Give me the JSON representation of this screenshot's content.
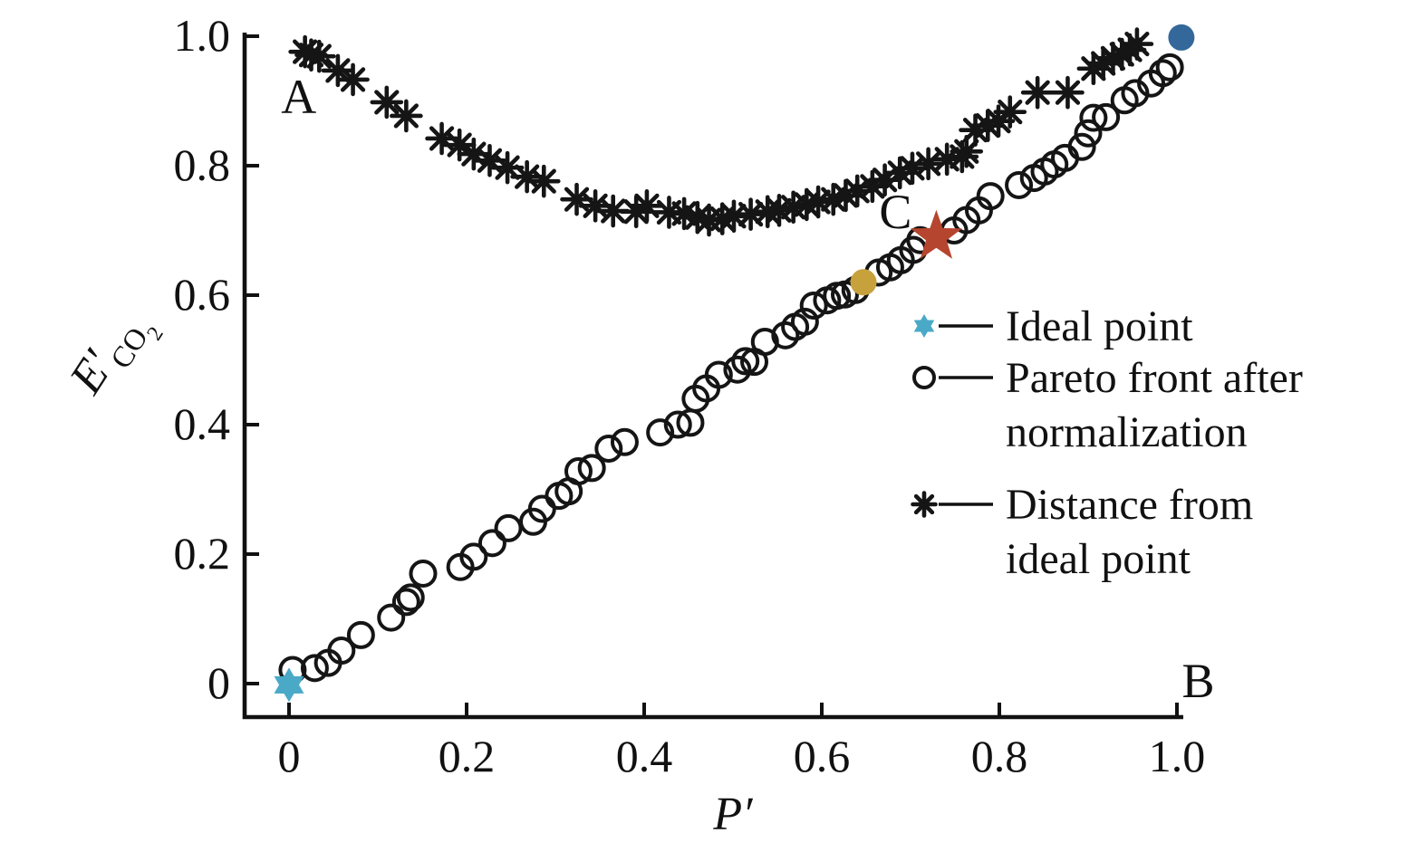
{
  "figure": {
    "background": "#ffffff",
    "axis_color": "#111111",
    "text_color": "#111111"
  },
  "chart_data": {
    "type": "scatter",
    "title": "",
    "xlabel": "P′",
    "ylabel": {
      "base": "E′",
      "sub": "CO",
      "subsub": "2"
    },
    "xlim": [
      0,
      1.0
    ],
    "ylim": [
      0,
      1.0
    ],
    "grid": false,
    "xticks": {
      "values": [
        0,
        0.2,
        0.4,
        0.6,
        0.8,
        1.0
      ],
      "labels": [
        "0",
        "0.2",
        "0.4",
        "0.6",
        "0.8",
        "1.0"
      ]
    },
    "yticks": {
      "values": [
        0,
        0.2,
        0.4,
        0.6,
        0.8,
        1.0
      ],
      "labels": [
        "0",
        "0.2",
        "0.4",
        "0.6",
        "0.8",
        "1.0"
      ]
    },
    "annotations": [
      {
        "text": "A",
        "x": 0.011,
        "y": 0.906
      },
      {
        "text": "B",
        "x": 1.024,
        "y": 0.004
      },
      {
        "text": "C",
        "x": 0.683,
        "y": 0.729
      }
    ],
    "legend": {
      "position": "right-middle",
      "entries": [
        {
          "marker": "star6",
          "color": "#4aa9c7",
          "lines": [
            "Ideal point"
          ]
        },
        {
          "marker": "open-circle",
          "color": "#151515",
          "lines": [
            "Pareto front after",
            "normalization"
          ]
        },
        {
          "marker": "asterisk8",
          "color": "#151515",
          "lines": [
            "Distance from",
            "ideal point"
          ]
        }
      ]
    },
    "series": [
      {
        "name": "Distance from ideal point",
        "marker": "asterisk8",
        "color": "#151515",
        "in_legend": true,
        "points": [
          [
            0.018,
            0.976
          ],
          [
            0.025,
            0.971
          ],
          [
            0.034,
            0.969
          ],
          [
            0.055,
            0.947
          ],
          [
            0.072,
            0.933
          ],
          [
            0.11,
            0.898
          ],
          [
            0.132,
            0.877
          ],
          [
            0.172,
            0.842
          ],
          [
            0.192,
            0.832
          ],
          [
            0.208,
            0.818
          ],
          [
            0.226,
            0.808
          ],
          [
            0.246,
            0.797
          ],
          [
            0.268,
            0.783
          ],
          [
            0.287,
            0.776
          ],
          [
            0.324,
            0.748
          ],
          [
            0.345,
            0.738
          ],
          [
            0.365,
            0.73
          ],
          [
            0.391,
            0.729
          ],
          [
            0.403,
            0.738
          ],
          [
            0.428,
            0.728
          ],
          [
            0.445,
            0.726
          ],
          [
            0.46,
            0.72
          ],
          [
            0.473,
            0.716
          ],
          [
            0.488,
            0.718
          ],
          [
            0.501,
            0.722
          ],
          [
            0.52,
            0.725
          ],
          [
            0.539,
            0.729
          ],
          [
            0.552,
            0.731
          ],
          [
            0.568,
            0.736
          ],
          [
            0.583,
            0.74
          ],
          [
            0.596,
            0.744
          ],
          [
            0.613,
            0.748
          ],
          [
            0.627,
            0.754
          ],
          [
            0.64,
            0.761
          ],
          [
            0.657,
            0.768
          ],
          [
            0.671,
            0.778
          ],
          [
            0.688,
            0.789
          ],
          [
            0.702,
            0.796
          ],
          [
            0.72,
            0.803
          ],
          [
            0.741,
            0.81
          ],
          [
            0.758,
            0.814
          ],
          [
            0.763,
            0.822
          ],
          [
            0.773,
            0.855
          ],
          [
            0.787,
            0.862
          ],
          [
            0.799,
            0.869
          ],
          [
            0.812,
            0.883
          ],
          [
            0.843,
            0.913
          ],
          [
            0.877,
            0.913
          ],
          [
            0.906,
            0.95
          ],
          [
            0.917,
            0.958
          ],
          [
            0.928,
            0.966
          ],
          [
            0.938,
            0.972
          ],
          [
            0.947,
            0.979
          ],
          [
            0.955,
            0.988
          ]
        ]
      },
      {
        "name": "Pareto front after normalization",
        "marker": "open-circle",
        "color": "#151515",
        "in_legend": true,
        "points": [
          [
            0.004,
            0.021
          ],
          [
            0.029,
            0.024
          ],
          [
            0.044,
            0.032
          ],
          [
            0.059,
            0.051
          ],
          [
            0.081,
            0.075
          ],
          [
            0.115,
            0.102
          ],
          [
            0.132,
            0.126
          ],
          [
            0.137,
            0.133
          ],
          [
            0.151,
            0.17
          ],
          [
            0.193,
            0.18
          ],
          [
            0.208,
            0.196
          ],
          [
            0.229,
            0.217
          ],
          [
            0.247,
            0.24
          ],
          [
            0.275,
            0.25
          ],
          [
            0.285,
            0.27
          ],
          [
            0.304,
            0.29
          ],
          [
            0.315,
            0.297
          ],
          [
            0.326,
            0.328
          ],
          [
            0.341,
            0.333
          ],
          [
            0.36,
            0.363
          ],
          [
            0.378,
            0.373
          ],
          [
            0.418,
            0.388
          ],
          [
            0.438,
            0.4
          ],
          [
            0.452,
            0.403
          ],
          [
            0.458,
            0.44
          ],
          [
            0.47,
            0.456
          ],
          [
            0.484,
            0.477
          ],
          [
            0.505,
            0.485
          ],
          [
            0.514,
            0.498
          ],
          [
            0.524,
            0.497
          ],
          [
            0.536,
            0.528
          ],
          [
            0.559,
            0.538
          ],
          [
            0.57,
            0.551
          ],
          [
            0.581,
            0.559
          ],
          [
            0.591,
            0.584
          ],
          [
            0.606,
            0.592
          ],
          [
            0.617,
            0.599
          ],
          [
            0.626,
            0.601
          ],
          [
            0.638,
            0.608
          ],
          [
            0.664,
            0.635
          ],
          [
            0.677,
            0.643
          ],
          [
            0.689,
            0.654
          ],
          [
            0.703,
            0.67
          ],
          [
            0.711,
            0.685
          ],
          [
            0.749,
            0.7
          ],
          [
            0.763,
            0.716
          ],
          [
            0.777,
            0.731
          ],
          [
            0.79,
            0.753
          ],
          [
            0.822,
            0.77
          ],
          [
            0.839,
            0.781
          ],
          [
            0.851,
            0.791
          ],
          [
            0.862,
            0.802
          ],
          [
            0.874,
            0.812
          ],
          [
            0.893,
            0.829
          ],
          [
            0.9,
            0.85
          ],
          [
            0.906,
            0.874
          ],
          [
            0.92,
            0.875
          ],
          [
            0.941,
            0.901
          ],
          [
            0.953,
            0.912
          ],
          [
            0.971,
            0.927
          ],
          [
            0.984,
            0.943
          ],
          [
            0.992,
            0.952
          ]
        ]
      },
      {
        "name": "Ideal point",
        "marker": "star6",
        "color": "#4aa9c7",
        "in_legend": true,
        "points": [
          [
            0.0,
            -0.002
          ]
        ]
      },
      {
        "name": "Selected point (gold)",
        "marker": "dot",
        "color": "#c7a13c",
        "in_legend": false,
        "points": [
          [
            0.647,
            0.62
          ]
        ]
      },
      {
        "name": "Compromise point C",
        "marker": "star5",
        "color": "#b6452f",
        "in_legend": false,
        "points": [
          [
            0.729,
            0.69
          ]
        ]
      },
      {
        "name": "Endpoint B (blue)",
        "marker": "dot",
        "color": "#34689b",
        "in_legend": false,
        "points": [
          [
            1.005,
            0.998
          ]
        ]
      }
    ]
  }
}
